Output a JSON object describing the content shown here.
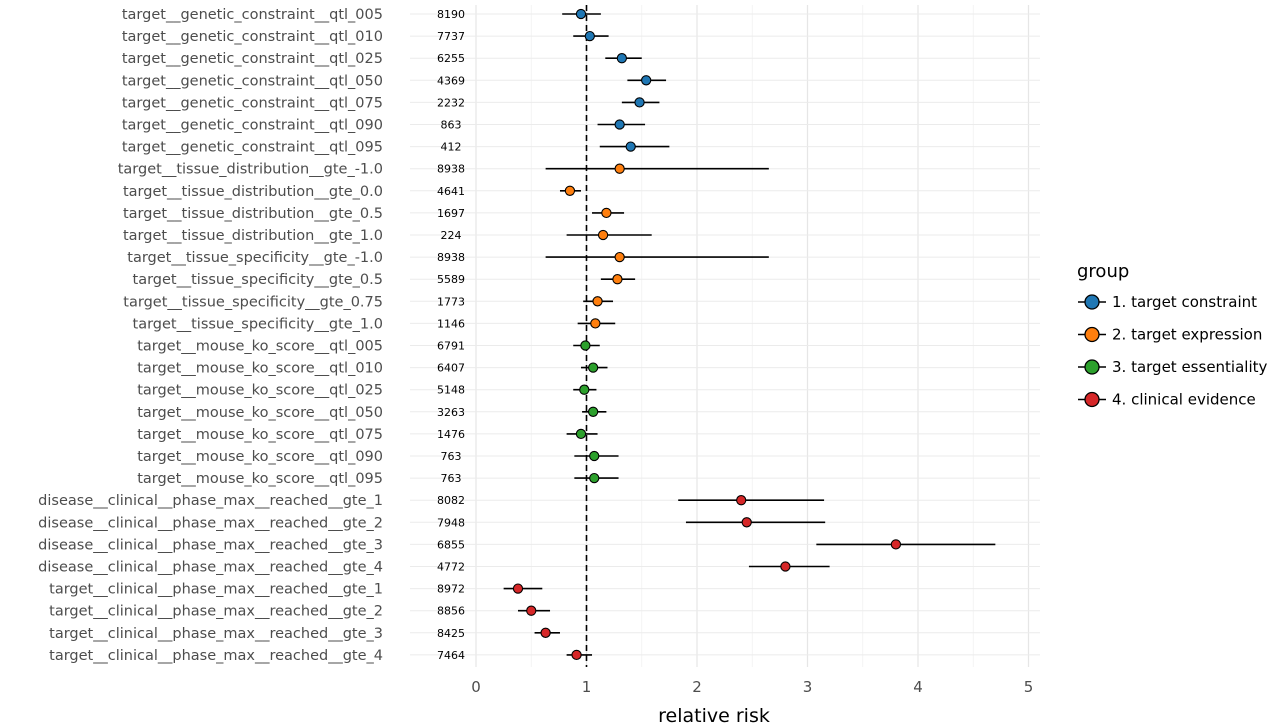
{
  "chart_data": {
    "type": "scatter",
    "subtype": "forest-plot",
    "title": "",
    "xlabel": "relative risk",
    "ylabel": "",
    "xlim": [
      0,
      5
    ],
    "x_ticks": [
      0,
      1,
      2,
      3,
      4,
      5
    ],
    "x_tick_labels": [
      "0",
      "1",
      "2",
      "3",
      "4",
      "5"
    ],
    "reference_line": 1,
    "grid": true,
    "legend_title": "group",
    "legend_placement": "right",
    "groups": [
      {
        "name": "1. target constraint",
        "color": "#1f77b4"
      },
      {
        "name": "2. target expression",
        "color": "#ff7f0e"
      },
      {
        "name": "3. target essentiality",
        "color": "#2ca02c"
      },
      {
        "name": "4. clinical evidence",
        "color": "#d62728"
      }
    ],
    "rows": [
      {
        "label": "target__genetic_constraint__qtl_005",
        "n": "8190",
        "group": 0,
        "rr": 0.95,
        "lo": 0.78,
        "hi": 1.13
      },
      {
        "label": "target__genetic_constraint__qtl_010",
        "n": "7737",
        "group": 0,
        "rr": 1.03,
        "lo": 0.88,
        "hi": 1.2
      },
      {
        "label": "target__genetic_constraint__qtl_025",
        "n": "6255",
        "group": 0,
        "rr": 1.32,
        "lo": 1.17,
        "hi": 1.5
      },
      {
        "label": "target__genetic_constraint__qtl_050",
        "n": "4369",
        "group": 0,
        "rr": 1.54,
        "lo": 1.37,
        "hi": 1.72
      },
      {
        "label": "target__genetic_constraint__qtl_075",
        "n": "2232",
        "group": 0,
        "rr": 1.48,
        "lo": 1.32,
        "hi": 1.66
      },
      {
        "label": "target__genetic_constraint__qtl_090",
        "n": "863",
        "group": 0,
        "rr": 1.3,
        "lo": 1.1,
        "hi": 1.53
      },
      {
        "label": "target__genetic_constraint__qtl_095",
        "n": "412",
        "group": 0,
        "rr": 1.4,
        "lo": 1.12,
        "hi": 1.75
      },
      {
        "label": "target__tissue_distribution__gte_-1.0",
        "n": "8938",
        "group": 1,
        "rr": 1.3,
        "lo": 0.63,
        "hi": 2.65
      },
      {
        "label": "target__tissue_distribution__gte_0.0",
        "n": "4641",
        "group": 1,
        "rr": 0.85,
        "lo": 0.76,
        "hi": 0.95
      },
      {
        "label": "target__tissue_distribution__gte_0.5",
        "n": "1697",
        "group": 1,
        "rr": 1.18,
        "lo": 1.05,
        "hi": 1.34
      },
      {
        "label": "target__tissue_distribution__gte_1.0",
        "n": "224",
        "group": 1,
        "rr": 1.15,
        "lo": 0.82,
        "hi": 1.59
      },
      {
        "label": "target__tissue_specificity__gte_-1.0",
        "n": "8938",
        "group": 1,
        "rr": 1.3,
        "lo": 0.63,
        "hi": 2.65
      },
      {
        "label": "target__tissue_specificity__gte_0.5",
        "n": "5589",
        "group": 1,
        "rr": 1.28,
        "lo": 1.13,
        "hi": 1.44
      },
      {
        "label": "target__tissue_specificity__gte_0.75",
        "n": "1773",
        "group": 1,
        "rr": 1.1,
        "lo": 0.97,
        "hi": 1.24
      },
      {
        "label": "target__tissue_specificity__gte_1.0",
        "n": "1146",
        "group": 1,
        "rr": 1.08,
        "lo": 0.92,
        "hi": 1.26
      },
      {
        "label": "target__mouse_ko_score__qtl_005",
        "n": "6791",
        "group": 2,
        "rr": 0.99,
        "lo": 0.88,
        "hi": 1.12
      },
      {
        "label": "target__mouse_ko_score__qtl_010",
        "n": "6407",
        "group": 2,
        "rr": 1.06,
        "lo": 0.95,
        "hi": 1.19
      },
      {
        "label": "target__mouse_ko_score__qtl_025",
        "n": "5148",
        "group": 2,
        "rr": 0.98,
        "lo": 0.88,
        "hi": 1.09
      },
      {
        "label": "target__mouse_ko_score__qtl_050",
        "n": "3263",
        "group": 2,
        "rr": 1.06,
        "lo": 0.96,
        "hi": 1.18
      },
      {
        "label": "target__mouse_ko_score__qtl_075",
        "n": "1476",
        "group": 2,
        "rr": 0.95,
        "lo": 0.82,
        "hi": 1.1
      },
      {
        "label": "target__mouse_ko_score__qtl_090",
        "n": "763",
        "group": 2,
        "rr": 1.07,
        "lo": 0.89,
        "hi": 1.29
      },
      {
        "label": "target__mouse_ko_score__qtl_095",
        "n": "763",
        "group": 2,
        "rr": 1.07,
        "lo": 0.89,
        "hi": 1.29
      },
      {
        "label": "disease__clinical__phase_max__reached__gte_1",
        "n": "8082",
        "group": 3,
        "rr": 2.4,
        "lo": 1.83,
        "hi": 3.15
      },
      {
        "label": "disease__clinical__phase_max__reached__gte_2",
        "n": "7948",
        "group": 3,
        "rr": 2.45,
        "lo": 1.9,
        "hi": 3.16
      },
      {
        "label": "disease__clinical__phase_max__reached__gte_3",
        "n": "6855",
        "group": 3,
        "rr": 3.8,
        "lo": 3.08,
        "hi": 4.7
      },
      {
        "label": "disease__clinical__phase_max__reached__gte_4",
        "n": "4772",
        "group": 3,
        "rr": 2.8,
        "lo": 2.47,
        "hi": 3.2
      },
      {
        "label": "target__clinical__phase_max__reached__gte_1",
        "n": "8972",
        "group": 3,
        "rr": 0.38,
        "lo": 0.25,
        "hi": 0.6
      },
      {
        "label": "target__clinical__phase_max__reached__gte_2",
        "n": "8856",
        "group": 3,
        "rr": 0.5,
        "lo": 0.38,
        "hi": 0.67
      },
      {
        "label": "target__clinical__phase_max__reached__gte_3",
        "n": "8425",
        "group": 3,
        "rr": 0.63,
        "lo": 0.53,
        "hi": 0.76
      },
      {
        "label": "target__clinical__phase_max__reached__gte_4",
        "n": "7464",
        "group": 3,
        "rr": 0.91,
        "lo": 0.82,
        "hi": 1.05
      }
    ]
  }
}
